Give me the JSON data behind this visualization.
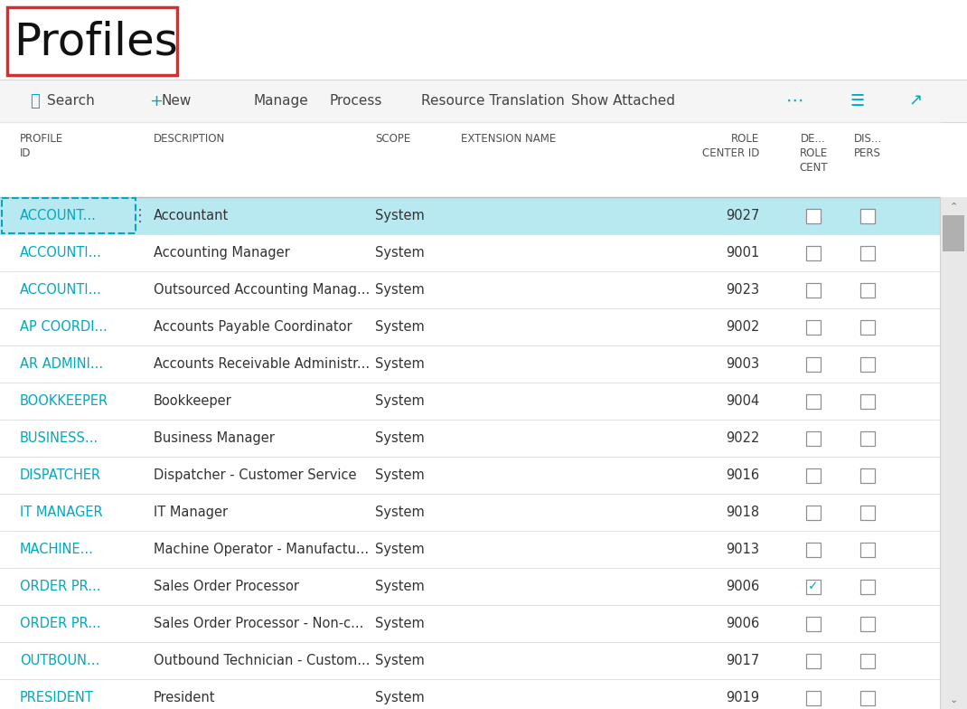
{
  "title": "Profiles",
  "bg_color": "#ffffff",
  "toolbar_bg": "#f5f5f5",
  "profile_id_color": "#00a8c0",
  "selected_row_bg": "#b8e8f0",
  "selected_border_color": "#00a8c0",
  "line_color": "#e0e0e0",
  "header_line_color": "#c0c0c0",
  "text_color": "#333333",
  "header_text_color": "#505050",
  "scrollbar_bg": "#e8e8e8",
  "scrollbar_thumb": "#b0b0b0",
  "checked_color": "#00a8c0",
  "rows": [
    {
      "profile_id": "ACCOUNT...",
      "description": "Accountant",
      "scope": "System",
      "role_center_id": "9027",
      "de_role": false,
      "dis_pers": false,
      "selected": true
    },
    {
      "profile_id": "ACCOUNTI...",
      "description": "Accounting Manager",
      "scope": "System",
      "role_center_id": "9001",
      "de_role": false,
      "dis_pers": false,
      "selected": false
    },
    {
      "profile_id": "ACCOUNTI...",
      "description": "Outsourced Accounting Manag...",
      "scope": "System",
      "role_center_id": "9023",
      "de_role": false,
      "dis_pers": false,
      "selected": false
    },
    {
      "profile_id": "AP COORDI...",
      "description": "Accounts Payable Coordinator",
      "scope": "System",
      "role_center_id": "9002",
      "de_role": false,
      "dis_pers": false,
      "selected": false
    },
    {
      "profile_id": "AR ADMINI...",
      "description": "Accounts Receivable Administr...",
      "scope": "System",
      "role_center_id": "9003",
      "de_role": false,
      "dis_pers": false,
      "selected": false
    },
    {
      "profile_id": "BOOKKEEPER",
      "description": "Bookkeeper",
      "scope": "System",
      "role_center_id": "9004",
      "de_role": false,
      "dis_pers": false,
      "selected": false
    },
    {
      "profile_id": "BUSINESS...",
      "description": "Business Manager",
      "scope": "System",
      "role_center_id": "9022",
      "de_role": false,
      "dis_pers": false,
      "selected": false
    },
    {
      "profile_id": "DISPATCHER",
      "description": "Dispatcher - Customer Service",
      "scope": "System",
      "role_center_id": "9016",
      "de_role": false,
      "dis_pers": false,
      "selected": false
    },
    {
      "profile_id": "IT MANAGER",
      "description": "IT Manager",
      "scope": "System",
      "role_center_id": "9018",
      "de_role": false,
      "dis_pers": false,
      "selected": false
    },
    {
      "profile_id": "MACHINE...",
      "description": "Machine Operator - Manufactu...",
      "scope": "System",
      "role_center_id": "9013",
      "de_role": false,
      "dis_pers": false,
      "selected": false
    },
    {
      "profile_id": "ORDER PR...",
      "description": "Sales Order Processor",
      "scope": "System",
      "role_center_id": "9006",
      "de_role": true,
      "dis_pers": false,
      "selected": false
    },
    {
      "profile_id": "ORDER PR...",
      "description": "Sales Order Processor - Non-c...",
      "scope": "System",
      "role_center_id": "9006",
      "de_role": false,
      "dis_pers": false,
      "selected": false
    },
    {
      "profile_id": "OUTBOUN...",
      "description": "Outbound Technician - Custom...",
      "scope": "System",
      "role_center_id": "9017",
      "de_role": false,
      "dis_pers": false,
      "selected": false
    },
    {
      "profile_id": "PRESIDENT",
      "description": "President",
      "scope": "System",
      "role_center_id": "9019",
      "de_role": false,
      "dis_pers": false,
      "selected": false
    }
  ]
}
